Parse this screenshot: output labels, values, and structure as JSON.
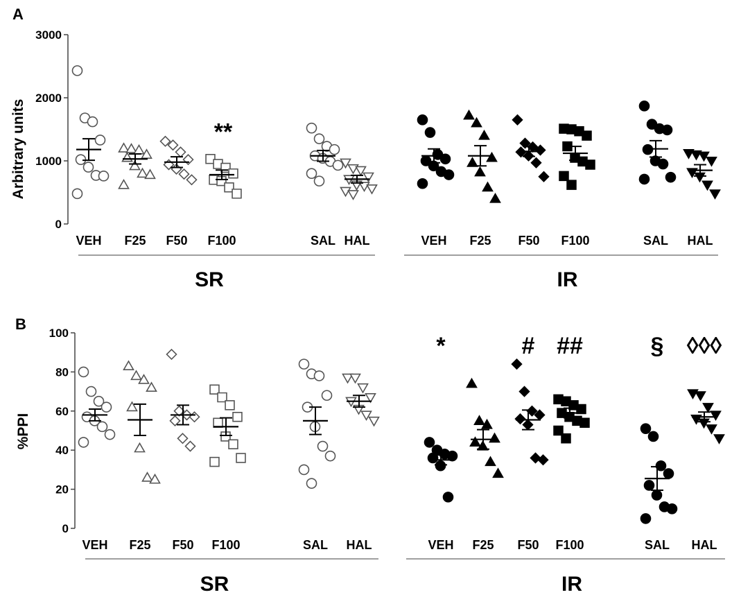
{
  "chart_data": [
    {
      "panel": "A",
      "type": "scatter",
      "ylabel": "Arbitrary units",
      "ylim": [
        0,
        3000
      ],
      "yticks": [
        "0",
        "1000",
        "2000",
        "3000"
      ],
      "groups": [
        {
          "name": "SR",
          "categories": [
            {
              "label": "VEH",
              "marker": "circle-open",
              "values": [
                2430,
                1680,
                1620,
                1330,
                1020,
                900,
                770,
                760,
                480
              ],
              "mean": 1180,
              "sem": 170,
              "annotation": ""
            },
            {
              "label": "F25",
              "marker": "triangle-open",
              "values": [
                1200,
                1190,
                1170,
                1100,
                1050,
                920,
                800,
                780,
                620
              ],
              "mean": 1030,
              "sem": 80,
              "annotation": ""
            },
            {
              "label": "F50",
              "marker": "diamond-open",
              "values": [
                1310,
                1250,
                1140,
                1020,
                940,
                870,
                790,
                700
              ],
              "mean": 980,
              "sem": 85,
              "annotation": ""
            },
            {
              "label": "F100",
              "marker": "square-open",
              "values": [
                1030,
                950,
                890,
                800,
                700,
                680,
                580,
                480
              ],
              "mean": 780,
              "sem": 75,
              "annotation": "**"
            }
          ]
        },
        {
          "name": "SAL/HAL",
          "categories": [
            {
              "label": "SAL",
              "marker": "circle-open",
              "values": [
                1520,
                1350,
                1230,
                1180,
                1080,
                1040,
                990,
                930,
                800,
                680
              ],
              "mean": 1080,
              "sem": 85,
              "annotation": ""
            },
            {
              "label": "HAL",
              "marker": "triangle-down-open",
              "values": [
                970,
                880,
                850,
                750,
                710,
                620,
                600,
                560,
                520,
                470
              ],
              "mean": 710,
              "sem": 60,
              "annotation": ""
            }
          ]
        },
        {
          "name": "IR",
          "categories": [
            {
              "label": "VEH",
              "marker": "circle-filled",
              "values": [
                1650,
                1450,
                1100,
                1030,
                1000,
                920,
                830,
                780,
                640
              ],
              "mean": 1080,
              "sem": 110,
              "annotation": ""
            },
            {
              "label": "F25",
              "marker": "triangle-filled",
              "values": [
                1720,
                1600,
                1400,
                1050,
                970,
                820,
                580,
                400
              ],
              "mean": 1080,
              "sem": 160,
              "annotation": ""
            },
            {
              "label": "F50",
              "marker": "diamond-filled",
              "values": [
                1650,
                1280,
                1220,
                1170,
                1140,
                1080,
                970,
                750
              ],
              "mean": 1150,
              "sem": 80,
              "annotation": ""
            },
            {
              "label": "F100",
              "marker": "square-filled",
              "values": [
                1510,
                1500,
                1470,
                1400,
                1230,
                1050,
                990,
                940,
                760,
                620
              ],
              "mean": 1120,
              "sem": 110,
              "annotation": ""
            }
          ]
        },
        {
          "name": "SAL/HAL",
          "categories": [
            {
              "label": "SAL",
              "marker": "circle-filled",
              "values": [
                1870,
                1580,
                1510,
                1490,
                1180,
                1000,
                950,
                740,
                710
              ],
              "mean": 1190,
              "sem": 130,
              "annotation": ""
            },
            {
              "label": "HAL",
              "marker": "triangle-down-filled",
              "values": [
                1120,
                1100,
                1080,
                1000,
                820,
                750,
                620,
                480
              ],
              "mean": 850,
              "sem": 90,
              "annotation": ""
            }
          ]
        }
      ],
      "bracket_labels": [
        "SR",
        "IR"
      ]
    },
    {
      "panel": "B",
      "type": "scatter",
      "ylabel": "%PPI",
      "ylim": [
        0,
        100
      ],
      "yticks": [
        "0",
        "20",
        "40",
        "60",
        "80",
        "100"
      ],
      "groups": [
        {
          "name": "SR",
          "categories": [
            {
              "label": "VEH",
              "marker": "circle-open",
              "values": [
                80,
                70,
                65,
                62,
                57,
                55,
                52,
                48,
                44
              ],
              "mean": 58,
              "sem": 3,
              "annotation": ""
            },
            {
              "label": "F25",
              "marker": "triangle-open",
              "values": [
                83,
                78,
                76,
                72,
                62,
                41,
                26,
                25
              ],
              "mean": 55.5,
              "sem": 8,
              "annotation": ""
            },
            {
              "label": "F50",
              "marker": "diamond-open",
              "values": [
                89,
                60,
                58,
                57,
                55,
                46,
                42
              ],
              "mean": 58,
              "sem": 5,
              "annotation": ""
            },
            {
              "label": "F100",
              "marker": "square-open",
              "values": [
                71,
                67,
                63,
                57,
                54,
                47,
                43,
                36,
                34
              ],
              "mean": 52,
              "sem": 4.5,
              "annotation": ""
            }
          ]
        },
        {
          "name": "SAL/HAL",
          "categories": [
            {
              "label": "SAL",
              "marker": "circle-open",
              "values": [
                84,
                79,
                78,
                68,
                62,
                52,
                42,
                37,
                30,
                23
              ],
              "mean": 55,
              "sem": 7,
              "annotation": ""
            },
            {
              "label": "HAL",
              "marker": "triangle-down-open",
              "values": [
                77,
                77,
                72,
                67,
                65,
                61,
                58,
                55
              ],
              "mean": 65,
              "sem": 3,
              "annotation": ""
            }
          ]
        },
        {
          "name": "IR",
          "categories": [
            {
              "label": "VEH",
              "marker": "circle-filled",
              "values": [
                44,
                40,
                38,
                37,
                36,
                32,
                16
              ],
              "mean": 35,
              "sem": 2.5,
              "annotation": "*"
            },
            {
              "label": "F25",
              "marker": "triangle-filled",
              "values": [
                74,
                55,
                53,
                46,
                44,
                42,
                34,
                28
              ],
              "mean": 45.5,
              "sem": 5,
              "annotation": ""
            },
            {
              "label": "F50",
              "marker": "diamond-filled",
              "values": [
                84,
                70,
                60,
                58,
                56,
                53,
                36,
                35
              ],
              "mean": 55.5,
              "sem": 5,
              "annotation": "#"
            },
            {
              "label": "F100",
              "marker": "square-filled",
              "values": [
                66,
                65,
                63,
                61,
                59,
                57,
                55,
                54,
                50,
                46
              ],
              "mean": 59,
              "sem": 2.5,
              "annotation": "##"
            }
          ]
        },
        {
          "name": "SAL/HAL",
          "categories": [
            {
              "label": "SAL",
              "marker": "circle-filled",
              "values": [
                51,
                47,
                32,
                28,
                22,
                17,
                11,
                10,
                5
              ],
              "mean": 25.5,
              "sem": 6,
              "annotation": "§"
            },
            {
              "label": "HAL",
              "marker": "triangle-down-filled",
              "values": [
                69,
                68,
                62,
                58,
                56,
                54,
                51,
                46
              ],
              "mean": 57,
              "sem": 2.5,
              "annotation": "◊◊◊"
            }
          ]
        }
      ],
      "bracket_labels": [
        "SR",
        "IR"
      ]
    }
  ]
}
